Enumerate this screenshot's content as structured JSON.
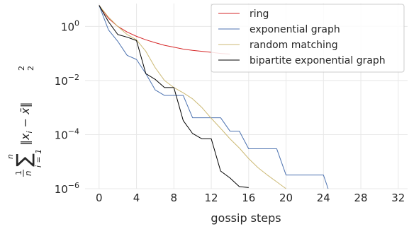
{
  "chart_data": {
    "type": "line",
    "title": "",
    "xlabel": "gossip steps",
    "ylabel": "1/n Σ_{i=1}^{n} ‖x_i − x̄‖²₂",
    "ylabel_parts": {
      "frac_num": "1",
      "frac_den": "n",
      "sum_top": "n",
      "sum_sym": "∑",
      "sum_bottom": "i = 1",
      "norm_open": "‖",
      "var": "x",
      "sub_i": "i",
      "minus": " − ",
      "xbar": "x̄",
      "norm_close": "‖",
      "sup": "2",
      "sub": "2"
    },
    "x_scale": "linear",
    "y_scale": "log",
    "xlim": [
      -1.5,
      33
    ],
    "ylim": [
      1e-06,
      7
    ],
    "xticks": [
      0,
      4,
      8,
      12,
      16,
      20,
      24,
      28,
      32
    ],
    "xtick_labels": [
      "0",
      "4",
      "8",
      "12",
      "16",
      "20",
      "24",
      "28",
      "32"
    ],
    "yticks": [
      1,
      0.01,
      0.0001,
      1e-06
    ],
    "ytick_labels": [
      {
        "base": "10",
        "exp": "0"
      },
      {
        "base": "10",
        "exp": "−2"
      },
      {
        "base": "10",
        "exp": "−4"
      },
      {
        "base": "10",
        "exp": "−6"
      }
    ],
    "grid": true,
    "legend_position": "top-right",
    "series": [
      {
        "name": "ring",
        "color": "#d62728",
        "x": [
          0,
          1,
          2,
          3,
          4,
          5,
          6,
          7,
          8,
          9,
          10,
          11,
          12,
          13,
          14
        ],
        "y": [
          6.0,
          2.0,
          1.0,
          0.62,
          0.43,
          0.32,
          0.25,
          0.2,
          0.17,
          0.145,
          0.13,
          0.12,
          0.11,
          0.1,
          0.095
        ]
      },
      {
        "name": "exponential graph",
        "color": "#4c72b0",
        "x": [
          0,
          1,
          2,
          3,
          4,
          5,
          6,
          7,
          8,
          9,
          10,
          11,
          12,
          13,
          14,
          15,
          16,
          17,
          18,
          19,
          20,
          21,
          22,
          23,
          24,
          24.5
        ],
        "y": [
          6.0,
          0.75,
          0.28,
          0.085,
          0.06,
          0.018,
          0.0045,
          0.0028,
          0.0028,
          0.0028,
          0.00042,
          0.00042,
          0.00042,
          0.00042,
          0.000135,
          0.000135,
          3e-05,
          3e-05,
          3e-05,
          3e-05,
          3.2e-06,
          3.2e-06,
          3.2e-06,
          3.2e-06,
          3.2e-06,
          1e-06
        ]
      },
      {
        "name": "random matching",
        "color": "#ccb974",
        "x": [
          0,
          1,
          2,
          3,
          4,
          5,
          6,
          7,
          8,
          9,
          10,
          11,
          12,
          13,
          14,
          15,
          16,
          17,
          18,
          19,
          20
        ],
        "y": [
          6.0,
          2.2,
          1.0,
          0.5,
          0.32,
          0.12,
          0.03,
          0.01,
          0.0055,
          0.0035,
          0.0021,
          0.001,
          0.0004,
          0.00017,
          7e-05,
          3.2e-05,
          1.3e-05,
          6e-06,
          3.2e-06,
          1.8e-06,
          1e-06
        ]
      },
      {
        "name": "bipartite exponential graph",
        "color": "#000000",
        "x": [
          0,
          1,
          2,
          3,
          4,
          5,
          6,
          7,
          8,
          9,
          10,
          11,
          12,
          13,
          14,
          15,
          16
        ],
        "y": [
          6.0,
          1.5,
          0.5,
          0.4,
          0.3,
          0.018,
          0.011,
          0.0055,
          0.0055,
          0.00033,
          0.00011,
          7e-05,
          7e-05,
          4.5e-06,
          2.5e-06,
          1.2e-06,
          1.1e-06
        ]
      }
    ]
  }
}
